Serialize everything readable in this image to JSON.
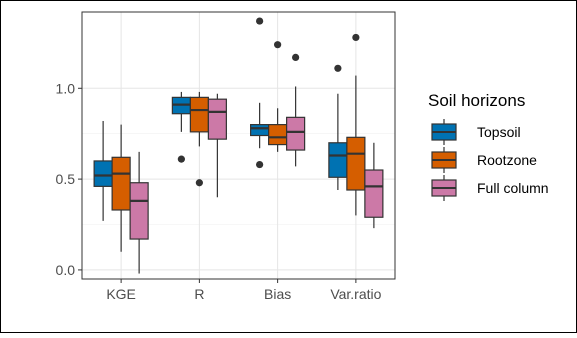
{
  "chart_data": {
    "type": "box",
    "categories": [
      "KGE",
      "R",
      "Bias",
      "Var.ratio"
    ],
    "ylim": [
      -0.05,
      1.42
    ],
    "y_ticks": [
      {
        "value": 0.0,
        "label": "0.0"
      },
      {
        "value": 0.5,
        "label": "0.5"
      },
      {
        "value": 1.0,
        "label": "1.0"
      }
    ],
    "grid": true,
    "legend": {
      "title": "Soil horizons",
      "position": "right"
    },
    "series": [
      {
        "name": "Topsoil",
        "color": "#0072B2",
        "boxes": [
          {
            "whisker_low": 0.27,
            "q1": 0.46,
            "median": 0.52,
            "q3": 0.6,
            "whisker_high": 0.82,
            "outliers": []
          },
          {
            "whisker_low": 0.76,
            "q1": 0.86,
            "median": 0.91,
            "q3": 0.95,
            "whisker_high": 0.98,
            "outliers": [
              0.61
            ]
          },
          {
            "whisker_low": 0.67,
            "q1": 0.74,
            "median": 0.78,
            "q3": 0.8,
            "whisker_high": 0.92,
            "outliers": [
              0.58,
              1.37
            ]
          },
          {
            "whisker_low": 0.44,
            "q1": 0.51,
            "median": 0.63,
            "q3": 0.7,
            "whisker_high": 0.97,
            "outliers": [
              1.11
            ]
          }
        ]
      },
      {
        "name": "Rootzone",
        "color": "#D55E00",
        "boxes": [
          {
            "whisker_low": 0.1,
            "q1": 0.33,
            "median": 0.53,
            "q3": 0.62,
            "whisker_high": 0.8,
            "outliers": []
          },
          {
            "whisker_low": 0.68,
            "q1": 0.76,
            "median": 0.88,
            "q3": 0.95,
            "whisker_high": 0.98,
            "outliers": [
              0.48
            ]
          },
          {
            "whisker_low": 0.65,
            "q1": 0.69,
            "median": 0.73,
            "q3": 0.8,
            "whisker_high": 0.89,
            "outliers": [
              1.24
            ]
          },
          {
            "whisker_low": 0.3,
            "q1": 0.44,
            "median": 0.64,
            "q3": 0.73,
            "whisker_high": 1.07,
            "outliers": [
              1.28
            ]
          }
        ]
      },
      {
        "name": "Full column",
        "color": "#CC79A7",
        "boxes": [
          {
            "whisker_low": -0.02,
            "q1": 0.17,
            "median": 0.38,
            "q3": 0.48,
            "whisker_high": 0.65,
            "outliers": []
          },
          {
            "whisker_low": 0.4,
            "q1": 0.72,
            "median": 0.87,
            "q3": 0.94,
            "whisker_high": 0.97,
            "outliers": []
          },
          {
            "whisker_low": 0.57,
            "q1": 0.66,
            "median": 0.76,
            "q3": 0.84,
            "whisker_high": 1.01,
            "outliers": [
              1.17
            ]
          },
          {
            "whisker_low": 0.23,
            "q1": 0.29,
            "median": 0.46,
            "q3": 0.55,
            "whisker_high": 0.7,
            "outliers": []
          }
        ]
      }
    ]
  }
}
